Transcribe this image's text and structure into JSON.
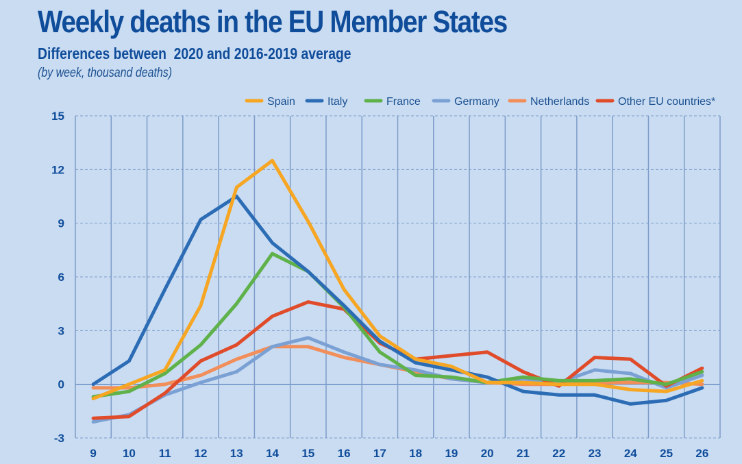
{
  "header": {
    "title": "Weekly deaths in the EU Member States",
    "subtitle": "Differences between  2020 and 2016-2019 average",
    "unit_note": "(by week, thousand deaths)"
  },
  "chart_data": {
    "type": "line",
    "title": "Weekly deaths in the EU Member States",
    "subtitle": "Differences between 2020 and 2016-2019 average",
    "xlabel": "",
    "ylabel": "",
    "unit": "thousand deaths, by week",
    "x": [
      9,
      10,
      11,
      12,
      13,
      14,
      15,
      16,
      17,
      18,
      19,
      20,
      21,
      22,
      23,
      24,
      25,
      26
    ],
    "ylim": [
      -3,
      15
    ],
    "yticks": [
      -3,
      0,
      3,
      6,
      9,
      12,
      15
    ],
    "grid": true,
    "legend_position": "top-right",
    "series": [
      {
        "name": "Spain",
        "color": "#f6a623",
        "values": [
          -0.8,
          0.0,
          0.8,
          4.4,
          11.0,
          12.5,
          9.1,
          5.3,
          2.7,
          1.4,
          1.0,
          0.1,
          0.1,
          0.0,
          0.0,
          -0.3,
          -0.4,
          0.2
        ]
      },
      {
        "name": "Italy",
        "color": "#2b6cb5",
        "values": [
          0.0,
          1.3,
          5.3,
          9.2,
          10.5,
          7.9,
          6.3,
          4.4,
          2.4,
          1.2,
          0.8,
          0.4,
          -0.4,
          -0.6,
          -0.6,
          -1.1,
          -0.9,
          -0.2
        ]
      },
      {
        "name": "France",
        "color": "#5fb14a",
        "values": [
          -0.7,
          -0.4,
          0.6,
          2.2,
          4.5,
          7.3,
          6.3,
          4.3,
          1.8,
          0.5,
          0.4,
          0.1,
          0.4,
          0.2,
          0.2,
          0.3,
          0.0,
          0.7
        ]
      },
      {
        "name": "Germany",
        "color": "#7ba1d4",
        "values": [
          -2.1,
          -1.7,
          -0.6,
          0.1,
          0.7,
          2.1,
          2.6,
          1.8,
          1.1,
          0.8,
          0.3,
          0.1,
          0.3,
          0.1,
          0.8,
          0.6,
          -0.2,
          0.5
        ]
      },
      {
        "name": "Netherlands",
        "color": "#f28e5a",
        "values": [
          -0.2,
          -0.2,
          0.0,
          0.5,
          1.4,
          2.1,
          2.1,
          1.5,
          1.1,
          0.7,
          0.3,
          0.1,
          0.0,
          0.0,
          0.1,
          0.1,
          0.1,
          0.0
        ]
      },
      {
        "name": "Other EU countries*",
        "color": "#e04b2a",
        "values": [
          -1.9,
          -1.8,
          -0.5,
          1.3,
          2.2,
          3.8,
          4.6,
          4.2,
          2.3,
          1.4,
          1.6,
          1.8,
          0.7,
          -0.1,
          1.5,
          1.4,
          -0.1,
          0.9
        ]
      }
    ]
  }
}
